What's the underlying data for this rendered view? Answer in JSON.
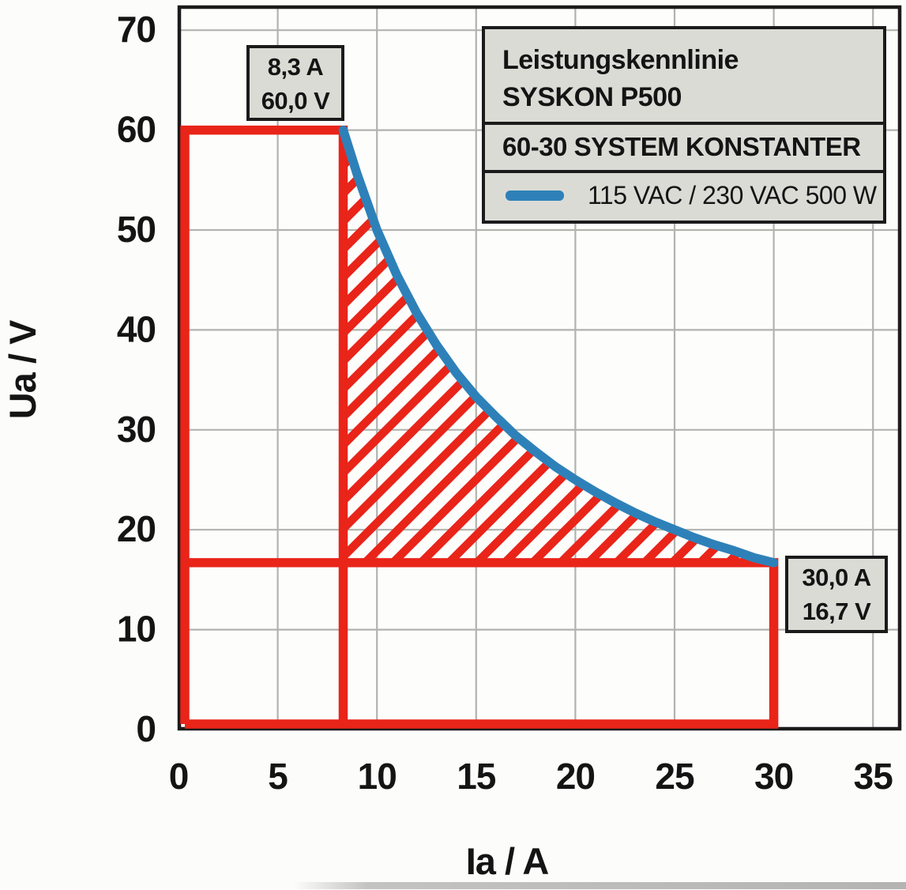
{
  "page": {
    "background": "#fcfcfa"
  },
  "chart_data": {
    "type": "line",
    "title": "Leistungskennlinie SYSKON P500",
    "subtitle": "60-30 SYSTEM KONSTANTER",
    "xlabel": "Ia / A",
    "ylabel": "Ua / V",
    "xlim": [
      0,
      36.3
    ],
    "ylim": [
      0,
      72.3
    ],
    "x_ticks": [
      0,
      5,
      10,
      15,
      20,
      25,
      30,
      35
    ],
    "y_ticks": [
      0,
      10,
      20,
      30,
      40,
      50,
      60,
      70
    ],
    "grid": true,
    "legend_position": "top-right",
    "series": [
      {
        "name": "115 VAC / 230 VAC 500 W",
        "power_w": 500,
        "i_range_a": [
          8.3,
          30.0
        ],
        "points": [
          [
            8.3,
            60.0
          ],
          [
            9,
            55.6
          ],
          [
            10,
            50.0
          ],
          [
            11,
            45.5
          ],
          [
            12,
            41.7
          ],
          [
            13,
            38.5
          ],
          [
            14,
            35.7
          ],
          [
            15,
            33.3
          ],
          [
            16,
            31.3
          ],
          [
            17,
            29.4
          ],
          [
            18,
            27.8
          ],
          [
            19,
            26.3
          ],
          [
            20,
            25.0
          ],
          [
            21,
            23.8
          ],
          [
            22,
            22.7
          ],
          [
            23,
            21.7
          ],
          [
            24,
            20.8
          ],
          [
            25,
            20.0
          ],
          [
            26,
            19.2
          ],
          [
            27,
            18.5
          ],
          [
            28,
            17.9
          ],
          [
            29,
            17.2
          ],
          [
            30,
            16.7
          ]
        ]
      }
    ],
    "limit_outline": {
      "u_max_v": 60.0,
      "i_at_umax_a": 8.3,
      "i_max_a": 30.0,
      "u_at_imax_v": 16.7,
      "hatch_style": "diagonal-forward"
    },
    "annotations": [
      {
        "text_lines": [
          "8,3 A",
          "60,0 V"
        ],
        "anchor": {
          "i_a": 8.3,
          "u_v": 60.0
        }
      },
      {
        "text_lines": [
          "30,0 A",
          "16,7 V"
        ],
        "anchor": {
          "i_a": 30.0,
          "u_v": 16.7
        }
      }
    ],
    "legend": {
      "rows": [
        {
          "lines": [
            "Leistungskennlinie",
            "SYSKON P500"
          ]
        },
        {
          "lines": [
            "60-30 SYSTEM KONSTANTER"
          ]
        },
        {
          "swatch": "line",
          "label": "115 VAC / 230 VAC 500 W"
        }
      ]
    },
    "colors": {
      "red": "#e92419",
      "blue": "#2e81b8",
      "grid": "#b2b2ae",
      "frame": "#1b1b1b",
      "box_bg": "#dbdbd6",
      "plot_bg": "#fdfdfc",
      "text": "#141414"
    }
  }
}
